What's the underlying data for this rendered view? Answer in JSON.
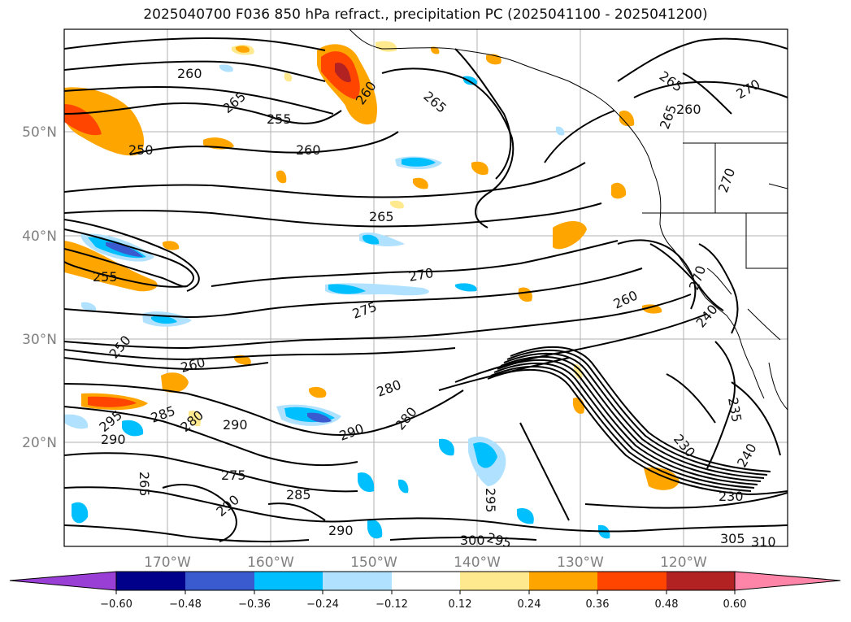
{
  "title": "2025040700 F036 850 hPa refract., precipitation PC (2025041100 - 2025041200)",
  "lon_labels": [
    "170°W",
    "160°W",
    "150°W",
    "140°W",
    "130°W",
    "120°W"
  ],
  "lat_labels": [
    "50°N",
    "40°N",
    "30°N",
    "20°N"
  ],
  "colorbar": {
    "ticks": [
      "−0.60",
      "−0.48",
      "−0.36",
      "−0.24",
      "−0.12",
      "0.12",
      "0.24",
      "0.36",
      "0.48",
      "0.60"
    ],
    "colors": [
      "#9a3fd6",
      "#00008b",
      "#3a5bd0",
      "#00bfff",
      "#b0e2ff",
      "#ffffff",
      "#ffe98f",
      "#ffa500",
      "#ff4500",
      "#b22222",
      "#ff85a8"
    ]
  },
  "contour_labels": [
    "260",
    "265",
    "255",
    "250",
    "260",
    "265",
    "260",
    "265",
    "270",
    "265",
    "270",
    "265",
    "270",
    "275",
    "255",
    "250",
    "260",
    "285",
    "280",
    "290",
    "280",
    "290",
    "295",
    "290",
    "280",
    "275",
    "285",
    "290",
    "295",
    "290",
    "300",
    "295",
    "305",
    "310",
    "230",
    "235",
    "240",
    "230",
    "240",
    "260",
    "270",
    "265",
    "260"
  ]
}
